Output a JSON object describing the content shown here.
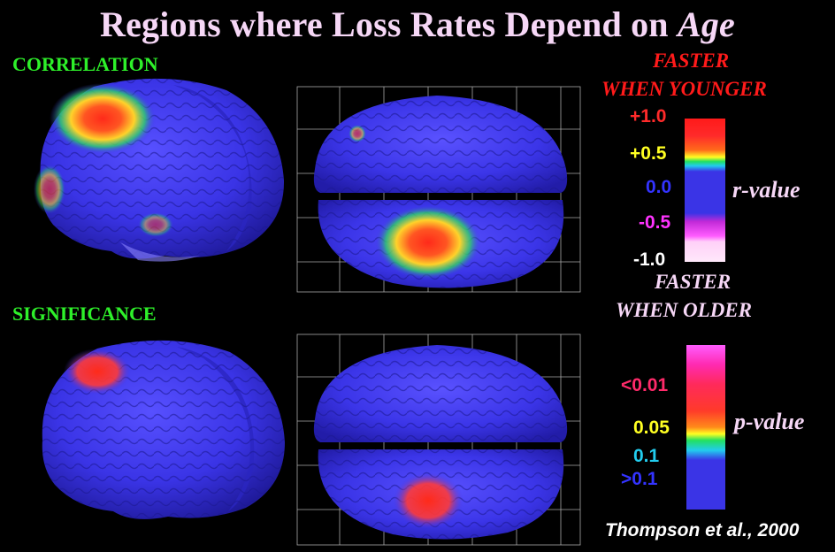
{
  "title": {
    "main": "Regions where Loss Rates Depend on ",
    "emph": "Age"
  },
  "labels": {
    "correlation": "CORRELATION",
    "significance": "SIGNIFICANCE"
  },
  "r_scale": {
    "top_caption_1": "FASTER",
    "top_caption_2": "WHEN YOUNGER",
    "bottom_caption_1": "FASTER",
    "bottom_caption_2": "WHEN OLDER",
    "name": "r-value",
    "ticks": [
      {
        "text": "+1.0",
        "color": "#ff2a2a"
      },
      {
        "text": "+0.5",
        "color": "#ffff22"
      },
      {
        "text": "0.0",
        "color": "#3333ff"
      },
      {
        "text": "-0.5",
        "color": "#ff33ff"
      },
      {
        "text": "-1.0",
        "color": "#ffffff"
      }
    ]
  },
  "p_scale": {
    "name": "p-value",
    "ticks": [
      {
        "text": "<0.01",
        "color": "#ff2a6a"
      },
      {
        "text": "0.05",
        "color": "#ffff22"
      },
      {
        "text": "0.1",
        "color": "#22ccee"
      },
      {
        "text": ">0.1",
        "color": "#3333ff"
      }
    ]
  },
  "credit": "Thompson et al., 2000",
  "colors": {
    "brain": "#3a34e6",
    "title": "#f6d7f6",
    "label": "#2ef02a",
    "caption_young": "#ff1a1a",
    "caption_old": "#f6d7f6"
  }
}
